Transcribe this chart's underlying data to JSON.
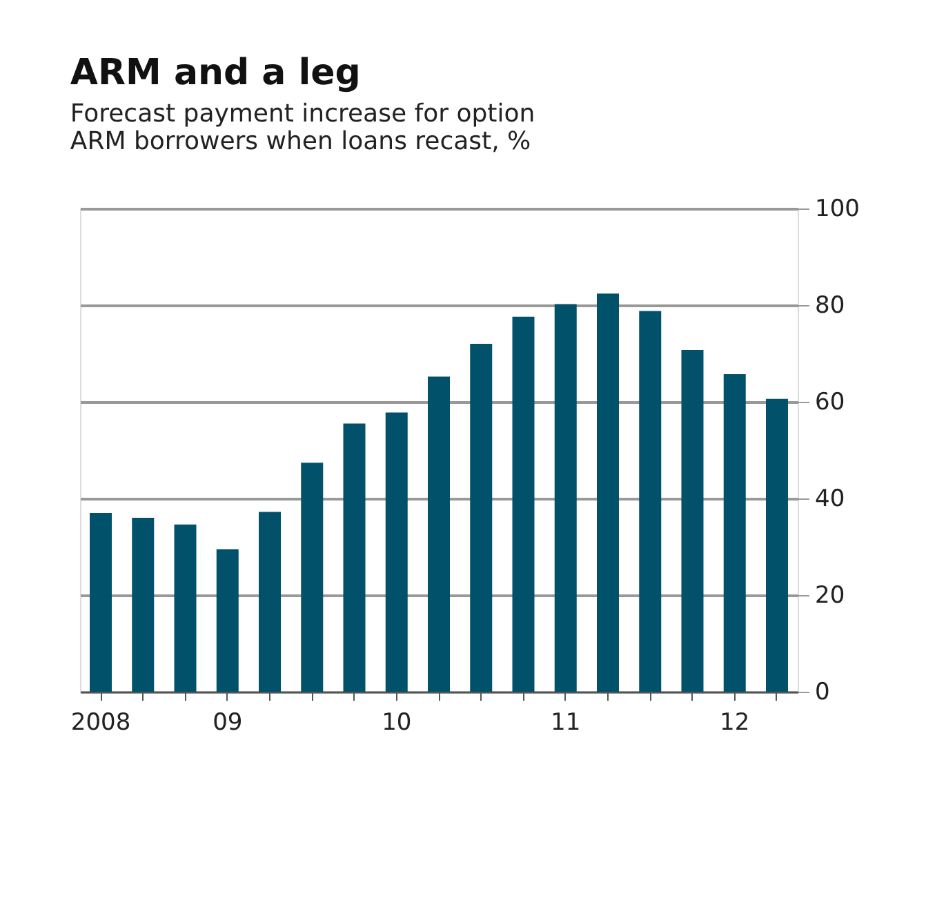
{
  "chart_data": {
    "type": "bar",
    "title": "ARM and a leg",
    "subtitle": [
      "Forecast payment increase for option",
      "ARM borrowers when loans recast, %"
    ],
    "categories": [
      "2008",
      null,
      null,
      "09",
      null,
      null,
      null,
      "10",
      null,
      null,
      null,
      "11",
      null,
      null,
      null,
      "12",
      null
    ],
    "values": [
      37,
      36,
      34.6,
      29.5,
      37.2,
      47.4,
      55.5,
      57.8,
      65.2,
      72,
      77.6,
      80.2,
      82.4,
      78.8,
      70.7,
      65.7,
      60.6
    ],
    "color": "#01516b",
    "ylim": [
      0,
      100
    ],
    "yticks": [
      0,
      20,
      40,
      60,
      80,
      100
    ],
    "grid": "y"
  }
}
